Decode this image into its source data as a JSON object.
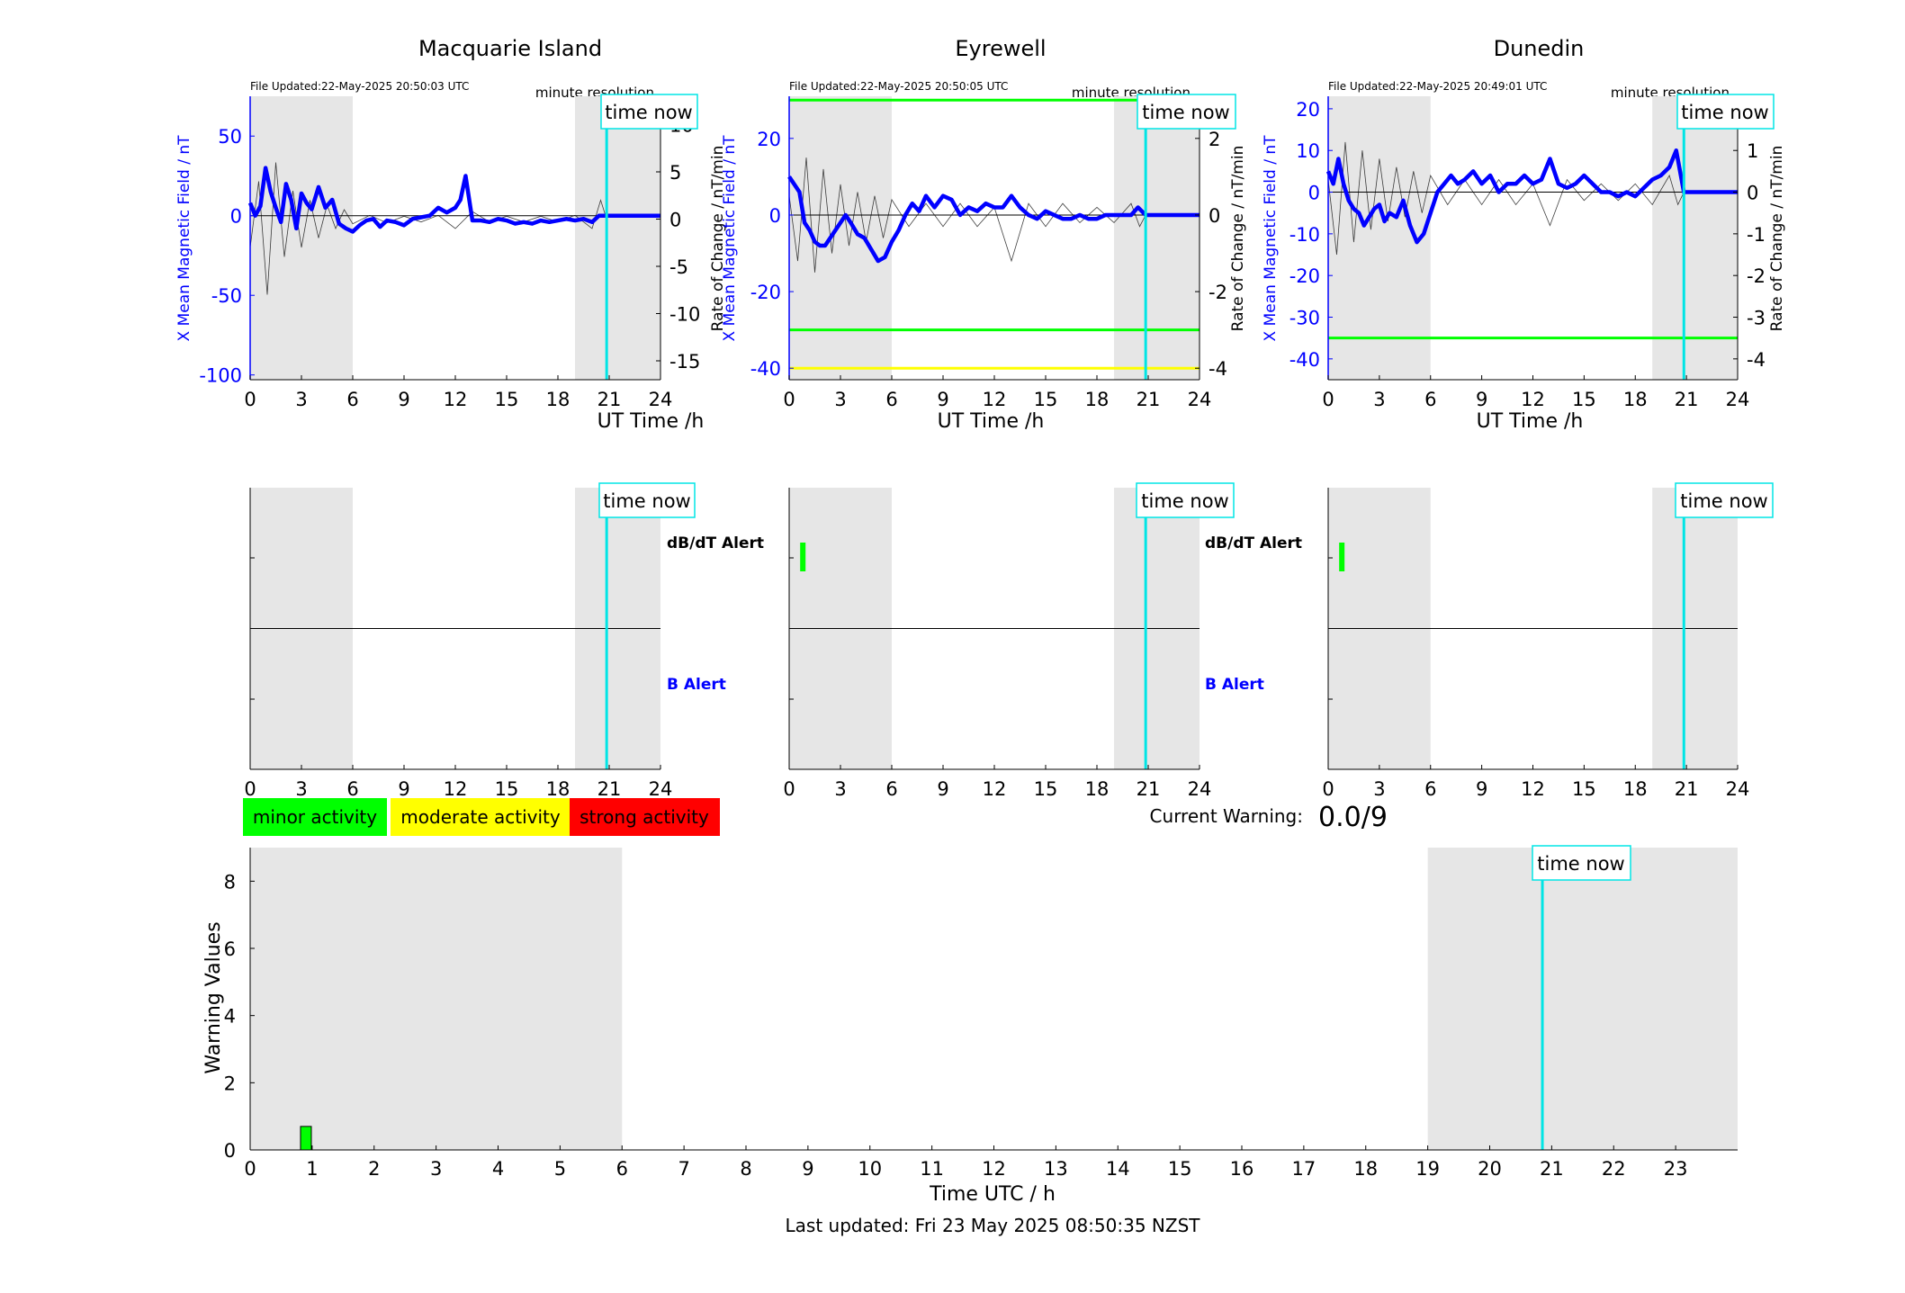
{
  "colors": {
    "field_line": "#0000ff",
    "rate_line": "#000000",
    "night_shade": "#e6e6e6",
    "time_now": "#00e5e5",
    "threshold_green": "#00ff00",
    "threshold_yellow": "#ffff00",
    "alert_bar": "#00ff00",
    "minor": "#00ff00",
    "moderate": "#ffff00",
    "strong": "#ff0000"
  },
  "stations": [
    {
      "title": "Macquarie Island",
      "file_updated": "File Updated:22-May-2025 20:50:03 UTC",
      "resolution": "minute resolution",
      "time_now_label": "time now",
      "left_ylabel": "X Mean Magnetic Field / nT",
      "right_ylabel": "Rate of Change / nT/min",
      "xlabel": "UT Time /h",
      "xticks": [
        "0",
        "3",
        "6",
        "9",
        "12",
        "15",
        "18",
        "21",
        "24"
      ],
      "left_yticks": [
        "50",
        "0",
        "-50",
        "-100"
      ],
      "right_yticks": [
        "10",
        "5",
        "0",
        "-5",
        "-10",
        "-15"
      ]
    },
    {
      "title": "Eyrewell",
      "file_updated": "File Updated:22-May-2025 20:50:05 UTC",
      "resolution": "minute resolution",
      "time_now_label": "time now",
      "left_ylabel": "X Mean Magnetic Field / nT",
      "right_ylabel": "Rate of Change / nT/min",
      "xlabel": "UT Time /h",
      "xticks": [
        "0",
        "3",
        "6",
        "9",
        "12",
        "15",
        "18",
        "21",
        "24"
      ],
      "left_yticks": [
        "20",
        "0",
        "-20",
        "-40"
      ],
      "right_yticks": [
        "2",
        "0",
        "-2",
        "-4"
      ]
    },
    {
      "title": "Dunedin",
      "file_updated": "File Updated:22-May-2025 20:49:01 UTC",
      "resolution": "minute resolution",
      "time_now_label": "time now",
      "left_ylabel": "X Mean Magnetic Field / nT",
      "right_ylabel": "Rate of Change / nT/min",
      "xlabel": "UT Time /h",
      "xticks": [
        "0",
        "3",
        "6",
        "9",
        "12",
        "15",
        "18",
        "21",
        "24"
      ],
      "left_yticks": [
        "20",
        "10",
        "0",
        "-10",
        "-20",
        "-30",
        "-40"
      ],
      "right_yticks": [
        "2",
        "1",
        "0",
        "-1",
        "-2",
        "-3",
        "-4"
      ]
    }
  ],
  "alerts": {
    "dbdt_label": "dB/dT Alert",
    "b_label": "B Alert",
    "time_now_label": "time now",
    "xticks": [
      "0",
      "3",
      "6",
      "9",
      "12",
      "15",
      "18",
      "21",
      "24"
    ]
  },
  "legend": {
    "minor": "minor activity",
    "moderate": "moderate activity",
    "strong": "strong activity"
  },
  "current_warning": {
    "label": "Current Warning:",
    "value": "0.0/9"
  },
  "warning_chart": {
    "ylabel": "Warning Values",
    "xlabel": "Time UTC / h",
    "time_now_label": "time now",
    "yticks": [
      "0",
      "2",
      "4",
      "6",
      "8"
    ],
    "xticks": [
      "0",
      "1",
      "2",
      "3",
      "4",
      "5",
      "6",
      "7",
      "8",
      "9",
      "10",
      "11",
      "12",
      "13",
      "14",
      "15",
      "16",
      "17",
      "18",
      "19",
      "20",
      "21",
      "22",
      "23"
    ]
  },
  "footer": {
    "last_updated": "Last updated: Fri 23 May 2025 08:50:35 NZST"
  },
  "chart_data": [
    {
      "type": "line",
      "title": "Macquarie Island",
      "xlabel": "UT Time /h",
      "ylabel": "X Mean Magnetic Field / nT",
      "ylabel_right": "Rate of Change / nT/min",
      "xlim": [
        0,
        24
      ],
      "ylim": [
        -103,
        75
      ],
      "ylim_right": [
        -17,
        13
      ],
      "night_shading_hours": [
        [
          0,
          6
        ],
        [
          19,
          24
        ]
      ],
      "time_now_hour": 20.85,
      "thresholds": [],
      "series": [
        {
          "name": "X Mean Magnetic Field / nT",
          "x": [
            0,
            0.3,
            0.6,
            0.9,
            1.2,
            1.5,
            1.8,
            2.1,
            2.4,
            2.7,
            3.0,
            3.3,
            3.6,
            4.0,
            4.4,
            4.8,
            5.2,
            5.6,
            6.0,
            6.4,
            6.8,
            7.2,
            7.6,
            8.0,
            8.5,
            9.0,
            9.5,
            10.0,
            10.5,
            11.0,
            11.5,
            12.0,
            12.3,
            12.6,
            13.0,
            13.5,
            14.0,
            14.5,
            15.0,
            15.5,
            16.0,
            16.5,
            17.0,
            17.5,
            18.0,
            18.5,
            19.0,
            19.5,
            20.0,
            20.4,
            20.85,
            21.2,
            22,
            23,
            24
          ],
          "y": [
            8,
            0,
            6,
            30,
            15,
            5,
            -4,
            20,
            10,
            -8,
            14,
            8,
            4,
            18,
            5,
            10,
            -5,
            -8,
            -10,
            -6,
            -3,
            -2,
            -7,
            -3,
            -4,
            -6,
            -2,
            -1,
            0,
            5,
            2,
            5,
            10,
            25,
            -3,
            -3,
            -4,
            -2,
            -3,
            -5,
            -4,
            -5,
            -3,
            -4,
            -3,
            -2,
            -3,
            -2,
            -4,
            0,
            0,
            0,
            0,
            0,
            0
          ]
        },
        {
          "name": "Rate of Change / nT/min",
          "x": [
            0,
            0.5,
            1,
            1.5,
            2,
            2.5,
            3,
            3.5,
            4,
            4.5,
            5,
            5.5,
            6,
            7,
            8,
            9,
            10,
            11,
            12,
            13,
            14,
            15,
            16,
            17,
            18,
            19,
            20,
            20.5,
            20.85
          ],
          "y": [
            -3,
            4,
            -8,
            6,
            -4,
            3,
            -3,
            2,
            -2,
            1.5,
            -1,
            1,
            -0.5,
            0.4,
            -0.4,
            0.3,
            -0.3,
            0.4,
            -1,
            0.8,
            -0.3,
            0.3,
            -0.3,
            0.3,
            -0.3,
            0.4,
            -1,
            2,
            0
          ]
        }
      ]
    },
    {
      "type": "line",
      "title": "Eyrewell",
      "xlabel": "UT Time /h",
      "ylabel": "X Mean Magnetic Field / nT",
      "ylabel_right": "Rate of Change / nT/min",
      "xlim": [
        0,
        24
      ],
      "ylim": [
        -43,
        31
      ],
      "ylim_right": [
        -4.3,
        3.1
      ],
      "night_shading_hours": [
        [
          0,
          6
        ],
        [
          19,
          24
        ]
      ],
      "time_now_hour": 20.85,
      "thresholds": [
        {
          "value": 30,
          "color": "#00ff00"
        },
        {
          "value": -30,
          "color": "#00ff00"
        },
        {
          "value": -40,
          "color": "#ffff00"
        }
      ],
      "series": [
        {
          "name": "X Mean Magnetic Field / nT",
          "x": [
            0,
            0.3,
            0.6,
            0.9,
            1.2,
            1.5,
            1.8,
            2.1,
            2.4,
            2.7,
            3.0,
            3.3,
            3.6,
            4.0,
            4.4,
            4.8,
            5.2,
            5.6,
            6.0,
            6.4,
            6.8,
            7.2,
            7.6,
            8.0,
            8.5,
            9.0,
            9.5,
            10.0,
            10.5,
            11.0,
            11.5,
            12.0,
            12.5,
            13.0,
            13.5,
            14.0,
            14.5,
            15.0,
            15.5,
            16.0,
            16.5,
            17.0,
            17.5,
            18.0,
            18.5,
            19.0,
            19.5,
            20.0,
            20.4,
            20.85,
            21.2,
            22,
            23,
            24
          ],
          "y": [
            10,
            8,
            6,
            -2,
            -4,
            -7,
            -8,
            -8,
            -6,
            -4,
            -2,
            0,
            -2,
            -5,
            -6,
            -9,
            -12,
            -11,
            -7,
            -4,
            0,
            3,
            1,
            5,
            2,
            5,
            4,
            0,
            2,
            1,
            3,
            2,
            2,
            5,
            2,
            0,
            -1,
            1,
            0,
            -1,
            -1,
            0,
            -1,
            -1,
            0,
            0,
            0,
            0,
            2,
            0,
            0,
            0,
            0,
            0
          ]
        },
        {
          "name": "Rate of Change / nT/min",
          "x": [
            0,
            0.5,
            1,
            1.5,
            2,
            2.5,
            3,
            3.5,
            4,
            4.5,
            5,
            5.5,
            6,
            7,
            8,
            9,
            10,
            11,
            12,
            13,
            14,
            15,
            16,
            17,
            18,
            19,
            20,
            20.5,
            20.85
          ],
          "y": [
            0.5,
            -1.2,
            1.5,
            -1.5,
            1.2,
            -1.0,
            0.8,
            -0.8,
            0.6,
            -0.7,
            0.5,
            -0.6,
            0.4,
            -0.3,
            0.3,
            -0.3,
            0.3,
            -0.3,
            0.2,
            -1.2,
            0.3,
            -0.3,
            0.3,
            -0.2,
            0.2,
            -0.2,
            0.3,
            -0.3,
            0
          ]
        }
      ]
    },
    {
      "type": "line",
      "title": "Dunedin",
      "xlabel": "UT Time /h",
      "ylabel": "X Mean Magnetic Field / nT",
      "ylabel_right": "Rate of Change / nT/min",
      "xlim": [
        0,
        24
      ],
      "ylim": [
        -45,
        23
      ],
      "ylim_right": [
        -4.5,
        2.3
      ],
      "night_shading_hours": [
        [
          0,
          6
        ],
        [
          19,
          24
        ]
      ],
      "time_now_hour": 20.85,
      "thresholds": [
        {
          "value": -35,
          "color": "#00ff00"
        }
      ],
      "series": [
        {
          "name": "X Mean Magnetic Field / nT",
          "x": [
            0,
            0.3,
            0.6,
            0.9,
            1.2,
            1.5,
            1.8,
            2.1,
            2.4,
            2.7,
            3.0,
            3.3,
            3.6,
            4.0,
            4.4,
            4.8,
            5.2,
            5.6,
            6.0,
            6.4,
            6.8,
            7.2,
            7.6,
            8.0,
            8.5,
            9.0,
            9.5,
            10.0,
            10.5,
            11.0,
            11.5,
            12.0,
            12.5,
            13.0,
            13.5,
            14.0,
            14.5,
            15.0,
            15.5,
            16.0,
            16.5,
            17.0,
            17.5,
            18.0,
            18.5,
            19.0,
            19.5,
            20.0,
            20.4,
            20.85,
            21.2,
            22,
            23,
            24
          ],
          "y": [
            5,
            2,
            8,
            2,
            -2,
            -4,
            -5,
            -8,
            -6,
            -4,
            -3,
            -7,
            -5,
            -6,
            -2,
            -8,
            -12,
            -10,
            -5,
            0,
            2,
            4,
            2,
            3,
            5,
            2,
            4,
            0,
            2,
            2,
            4,
            2,
            3,
            8,
            2,
            1,
            2,
            4,
            2,
            0,
            0,
            -1,
            0,
            -1,
            1,
            3,
            4,
            6,
            10,
            0,
            0,
            0,
            0,
            0
          ]
        },
        {
          "name": "Rate of Change / nT/min",
          "x": [
            0,
            0.5,
            1,
            1.5,
            2,
            2.5,
            3,
            3.5,
            4,
            4.5,
            5,
            5.5,
            6,
            7,
            8,
            9,
            10,
            11,
            12,
            13,
            14,
            15,
            16,
            17,
            18,
            19,
            20,
            20.5,
            20.85
          ],
          "y": [
            0.3,
            -1.5,
            1.2,
            -1.2,
            1.0,
            -0.9,
            0.8,
            -0.7,
            0.6,
            -0.6,
            0.5,
            -0.5,
            0.4,
            -0.3,
            0.3,
            -0.3,
            0.3,
            -0.3,
            0.2,
            -0.8,
            0.3,
            -0.2,
            0.2,
            -0.2,
            0.2,
            -0.3,
            0.4,
            -0.3,
            0
          ]
        }
      ]
    },
    {
      "type": "bar",
      "title": "",
      "xlabel": "Time UTC / h",
      "ylabel": "Warning Values",
      "xlim": [
        0,
        24
      ],
      "ylim": [
        0,
        9
      ],
      "night_shading_hours": [
        [
          0,
          6
        ],
        [
          19,
          24
        ]
      ],
      "time_now_hour": 20.85,
      "bars": [
        {
          "hour": 0.9,
          "value": 0.7,
          "color": "#00ff00"
        }
      ]
    }
  ],
  "alert_chart_data": [
    {
      "station": "Macquarie Island",
      "dbdt_alert_hours": [],
      "b_alert_hours": []
    },
    {
      "station": "Eyrewell",
      "dbdt_alert_hours": [
        0.8
      ],
      "b_alert_hours": []
    },
    {
      "station": "Dunedin",
      "dbdt_alert_hours": [
        0.8
      ],
      "b_alert_hours": []
    }
  ]
}
